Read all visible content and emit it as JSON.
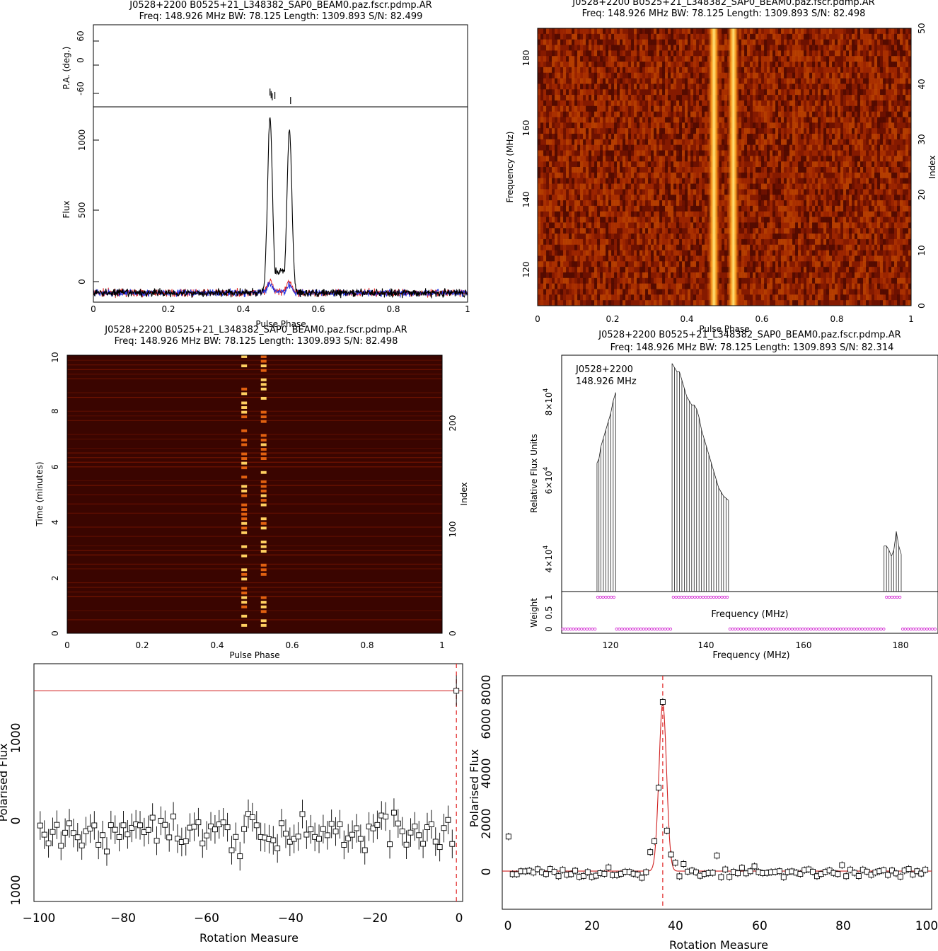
{
  "panels": {
    "profile": {
      "title": "J0528+2200  B0525+21_L348382_SAP0_BEAM0.paz.fscr.pdmp.AR",
      "subtitle": "Freq: 148.926 MHz BW: 78.125 Length: 1309.893 S/N: 82.499"
    },
    "phase_freq": {
      "title": "J0528+2200  B0525+21_L348382_SAP0_BEAM0.paz.fscr.pdmp.AR",
      "subtitle": "Freq: 148.926 MHz BW: 78.125 Length: 1309.893 S/N: 82.498"
    },
    "phase_time": {
      "title": "J0528+2200  B0525+21_L348382_SAP0_BEAM0.paz.fscr.pdmp.AR",
      "subtitle": "Freq: 148.926 MHz BW: 78.125 Length: 1309.893 S/N: 82.498"
    },
    "bandpass": {
      "title": "J0528+2200  B0525+21_L348382_SAP0_BEAM0.paz.fscr.pdmp.AR",
      "subtitle": "Freq: 148.926 MHz BW: 78.125 Length: 1309.893 S/N: 82.314",
      "inset_name": "J0528+2200",
      "inset_freq": "148.926 MHz"
    }
  },
  "chart_data": [
    {
      "type": "line",
      "name": "profile",
      "ylabel_top": "P.A. (deg.)",
      "ylabel": "Flux",
      "xlabel": "Pulse Phase",
      "xlim": [
        0,
        1
      ],
      "ylim": [
        -60,
        1200
      ],
      "pa_ylim": [
        -95,
        100
      ],
      "x_ticks": [
        "0",
        "0.2",
        "0.4",
        "0.6",
        "0.8",
        "1"
      ],
      "y_ticks": [
        "0",
        "500",
        "1000"
      ],
      "pa_ticks": [
        "-60",
        "0",
        "60"
      ],
      "peaks": [
        {
          "x": 0.472,
          "y": 1130
        },
        {
          "x": 0.524,
          "y": 1050
        }
      ],
      "bridge_y": 140,
      "pa_points": [
        {
          "x": 0.472,
          "y": -60
        },
        {
          "x": 0.475,
          "y": -66
        },
        {
          "x": 0.478,
          "y": -71
        },
        {
          "x": 0.485,
          "y": -68
        },
        {
          "x": 0.527,
          "y": -80
        }
      ]
    },
    {
      "type": "heatmap",
      "name": "phase_freq",
      "xlabel": "Pulse Phase",
      "ylabel": "Frequency (MHz)",
      "ylabel_right": "Index",
      "xlim": [
        0,
        1
      ],
      "ylim": [
        110.8,
        188.9
      ],
      "x_ticks": [
        "0",
        "0.2",
        "0.4",
        "0.6",
        "0.8",
        "1"
      ],
      "y_ticks": [
        "120",
        "140",
        "160",
        "180"
      ],
      "index_ticks": [
        "0",
        "10",
        "20",
        "30",
        "40",
        "50"
      ],
      "pulse_components": [
        0.472,
        0.524
      ]
    },
    {
      "type": "heatmap",
      "name": "phase_time",
      "xlabel": "Pulse Phase",
      "ylabel": "Time (minutes)",
      "ylabel_right": "Index",
      "xlim": [
        0,
        1
      ],
      "ylim": [
        0,
        10
      ],
      "x_ticks": [
        "0",
        "0.2",
        "0.4",
        "0.6",
        "0.8",
        "1"
      ],
      "y_ticks": [
        "0",
        "2",
        "4",
        "6",
        "8",
        "10"
      ],
      "index_ticks": [
        "0",
        "100",
        "200"
      ],
      "pulse_components": [
        0.472,
        0.524
      ]
    },
    {
      "type": "line",
      "name": "bandpass",
      "xlabel": "Frequency (MHz)",
      "ylabel": "Relative Flux Units",
      "ylabel_bottom": "Weight",
      "xlim": [
        110.8,
        187.5
      ],
      "x_ticks": [
        "120",
        "140",
        "160",
        "180"
      ],
      "y_tick_mantissa": [
        "4",
        "6",
        "8"
      ],
      "y_tick_base": "×10",
      "y_tick_exp": "4",
      "weight_ticks": [
        "0",
        "0.5",
        "1"
      ],
      "segments": [
        {
          "x": [
            118.0,
            118.4,
            118.8,
            119.3,
            119.8,
            120.3,
            120.8,
            121.3,
            121.8
          ],
          "y": [
            62000,
            63000,
            66000,
            68000,
            70000,
            72000,
            74000,
            77000,
            79000
          ]
        },
        {
          "x": [
            133.3,
            133.8,
            134.3,
            134.8,
            135.3,
            135.8,
            136.3,
            136.8,
            137.3,
            137.8,
            138.3,
            138.8,
            139.3,
            139.8,
            140.3,
            140.8,
            141.3,
            141.8,
            142.3,
            142.8,
            143.3,
            143.8,
            144.3,
            144.8
          ],
          "y": [
            86000,
            85000,
            84000,
            84000,
            82000,
            80000,
            78000,
            77000,
            76000,
            76000,
            75000,
            73000,
            70000,
            68000,
            66000,
            64000,
            62000,
            60000,
            58000,
            56000,
            55000,
            54000,
            53500,
            53000
          ]
        },
        {
          "x": [
            176.5,
            177.0,
            177.5,
            178.0,
            178.5,
            179.0,
            179.5,
            180.0
          ],
          "y": [
            42000,
            42000,
            41000,
            39500,
            41000,
            45500,
            42000,
            40000
          ]
        }
      ]
    },
    {
      "type": "scatter",
      "name": "rm_left",
      "xlabel": "Rotation Measure",
      "ylabel": "Polarised Flux",
      "xlim": [
        -101.5,
        1.5
      ],
      "ylim": [
        -1000,
        1820
      ],
      "x_ticks": [
        "−100",
        "−80",
        "−60",
        "−40",
        "−20",
        "0"
      ],
      "y_ticks": [
        "1000",
        "0",
        "1000"
      ],
      "fit_level": 1500,
      "peak": {
        "x": 0,
        "y": 1500,
        "err": 180
      },
      "vline": 0
    },
    {
      "type": "scatter",
      "name": "rm_right",
      "xlabel": "Rotation Measure",
      "ylabel": "Polarised Flux",
      "xlim": [
        -1.5,
        101.5
      ],
      "ylim": [
        -1600,
        8200
      ],
      "x_ticks": [
        "0",
        "20",
        "40",
        "60",
        "80",
        "100"
      ],
      "y_ticks": [
        "0",
        "2000",
        "4000",
        "6000",
        "8000"
      ],
      "vline": 37,
      "peak_points": [
        {
          "x": 0,
          "y": 1450
        },
        {
          "x": 34,
          "y": 800
        },
        {
          "x": 35,
          "y": 1250
        },
        {
          "x": 36,
          "y": 3500
        },
        {
          "x": 37,
          "y": 7100
        },
        {
          "x": 38,
          "y": 1700
        },
        {
          "x": 39,
          "y": 700
        },
        {
          "x": 40,
          "y": 350
        },
        {
          "x": 42,
          "y": 300
        },
        {
          "x": 50,
          "y": 650
        },
        {
          "x": 59,
          "y": 200
        },
        {
          "x": 80,
          "y": 250
        }
      ],
      "fit_center": 37,
      "fit_amp": 7100,
      "fit_sigma": 0.9
    }
  ]
}
